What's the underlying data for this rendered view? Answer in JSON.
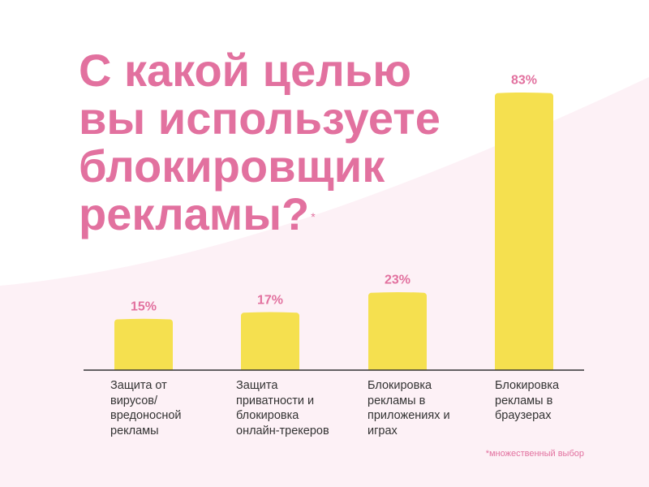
{
  "title": {
    "lines": [
      "С какой целью",
      "вы используете",
      "блокировщик",
      "рекламы?"
    ],
    "mark": "*"
  },
  "footnote": "*множественный выбор",
  "colors": {
    "bar": "#f5e04f",
    "accent": "#e2719f",
    "text": "#333333",
    "background_wave": "#fdf1f6"
  },
  "chart_data": {
    "type": "bar",
    "title": "С какой целью вы используете блокировщик рекламы?*",
    "categories": [
      "Защита от вирусов/ вредоносной рекламы",
      "Защита приватности и блокировка онлайн-трекеров",
      "Блокировка рекламы в приложениях и играх",
      "Блокировка рекламы в браузерах"
    ],
    "category_lines": [
      [
        "Защита от",
        "вирусов/",
        "вредоносной",
        "рекламы"
      ],
      [
        "Защита",
        "приватности и",
        "блокировка",
        "онлайн-трекеров"
      ],
      [
        "Блокировка",
        "рекламы в",
        "приложениях и",
        "играх"
      ],
      [
        "Блокировка",
        "рекламы в",
        "браузерах"
      ]
    ],
    "values": [
      15,
      17,
      23,
      83
    ],
    "value_labels": [
      "15%",
      "17%",
      "23%",
      "83%"
    ],
    "xlabel": "",
    "ylabel": "",
    "ylim": [
      0,
      100
    ],
    "grid": false,
    "legend": "none"
  }
}
